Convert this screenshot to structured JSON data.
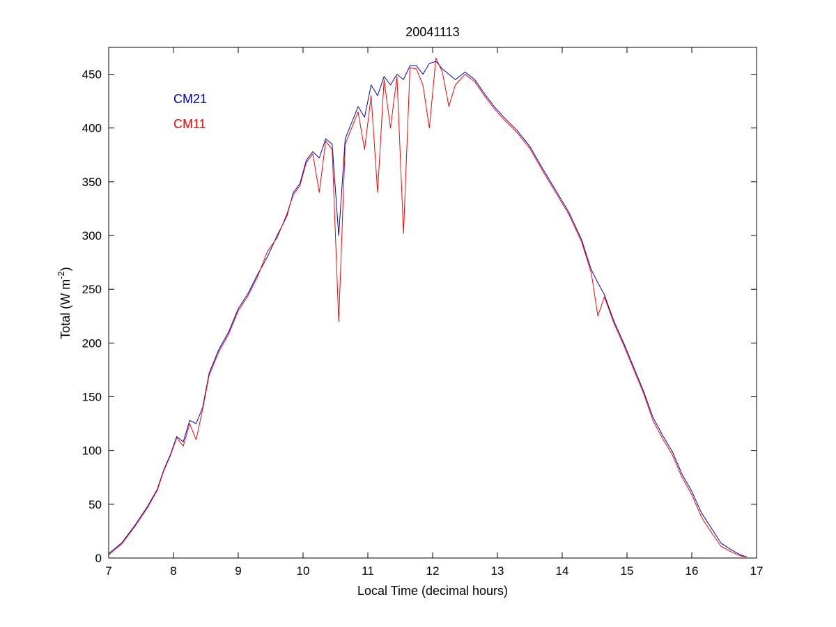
{
  "chart_data": {
    "type": "line",
    "title": "20041113",
    "xlabel": "Local Time (decimal hours)",
    "ylabel_main": "Total (W m",
    "ylabel_sup": "-2",
    "ylabel_close": ")",
    "xlim": [
      7,
      17
    ],
    "ylim": [
      0,
      475
    ],
    "xticks": [
      "7",
      "8",
      "9",
      "10",
      "11",
      "12",
      "13",
      "14",
      "15",
      "16",
      "17"
    ],
    "yticks": [
      "0",
      "50",
      "100",
      "150",
      "200",
      "250",
      "300",
      "350",
      "400",
      "450"
    ],
    "grid": false,
    "legend_position": "top-left",
    "series": [
      {
        "name": "CM21",
        "color": "#0000cc",
        "x": [
          7.0,
          7.2,
          7.4,
          7.6,
          7.75,
          7.85,
          7.95,
          8.05,
          8.15,
          8.25,
          8.35,
          8.45,
          8.55,
          8.7,
          8.85,
          9.0,
          9.15,
          9.3,
          9.45,
          9.6,
          9.75,
          9.85,
          9.95,
          10.05,
          10.15,
          10.25,
          10.35,
          10.45,
          10.55,
          10.65,
          10.75,
          10.85,
          10.95,
          11.05,
          11.15,
          11.25,
          11.35,
          11.45,
          11.55,
          11.65,
          11.75,
          11.85,
          11.95,
          12.05,
          12.15,
          12.25,
          12.35,
          12.5,
          12.65,
          12.8,
          12.95,
          13.1,
          13.3,
          13.5,
          13.7,
          13.9,
          14.1,
          14.3,
          14.45,
          14.55,
          14.65,
          14.8,
          14.95,
          15.1,
          15.25,
          15.4,
          15.55,
          15.7,
          15.85,
          16.0,
          16.15,
          16.3,
          16.45,
          16.6,
          16.75,
          16.85
        ],
        "y": [
          4,
          14,
          30,
          48,
          64,
          82,
          96,
          113,
          108,
          128,
          125,
          140,
          172,
          194,
          210,
          232,
          246,
          264,
          280,
          300,
          318,
          340,
          348,
          370,
          378,
          372,
          390,
          385,
          300,
          390,
          405,
          420,
          410,
          440,
          430,
          448,
          440,
          450,
          445,
          458,
          458,
          450,
          460,
          462,
          455,
          450,
          445,
          452,
          445,
          432,
          420,
          410,
          398,
          383,
          362,
          342,
          322,
          296,
          268,
          256,
          245,
          220,
          200,
          178,
          156,
          131,
          114,
          99,
          78,
          62,
          42,
          28,
          14,
          8,
          3,
          1
        ]
      },
      {
        "name": "CM11",
        "color": "#ff0000",
        "x": [
          7.0,
          7.2,
          7.4,
          7.6,
          7.75,
          7.85,
          7.95,
          8.05,
          8.15,
          8.25,
          8.35,
          8.45,
          8.55,
          8.7,
          8.85,
          9.0,
          9.15,
          9.3,
          9.45,
          9.6,
          9.75,
          9.85,
          9.95,
          10.05,
          10.15,
          10.25,
          10.35,
          10.45,
          10.55,
          10.65,
          10.75,
          10.85,
          10.95,
          11.05,
          11.15,
          11.25,
          11.35,
          11.45,
          11.55,
          11.65,
          11.75,
          11.85,
          11.95,
          12.05,
          12.15,
          12.25,
          12.35,
          12.5,
          12.65,
          12.8,
          12.95,
          13.1,
          13.3,
          13.5,
          13.7,
          13.9,
          14.1,
          14.3,
          14.45,
          14.55,
          14.65,
          14.8,
          14.95,
          15.1,
          15.25,
          15.4,
          15.55,
          15.7,
          15.85,
          16.0,
          16.15,
          16.3,
          16.45,
          16.6,
          16.75,
          16.85
        ],
        "y": [
          3,
          13,
          29,
          47,
          63,
          81,
          95,
          112,
          104,
          125,
          110,
          138,
          170,
          192,
          208,
          230,
          244,
          262,
          285,
          298,
          320,
          338,
          346,
          368,
          376,
          340,
          388,
          380,
          220,
          385,
          400,
          415,
          380,
          430,
          340,
          445,
          400,
          448,
          302,
          456,
          455,
          440,
          400,
          465,
          452,
          420,
          440,
          450,
          443,
          430,
          418,
          408,
          396,
          381,
          360,
          340,
          320,
          294,
          265,
          225,
          243,
          218,
          198,
          176,
          154,
          128,
          111,
          96,
          75,
          59,
          38,
          24,
          11,
          6,
          2,
          1
        ]
      }
    ]
  }
}
